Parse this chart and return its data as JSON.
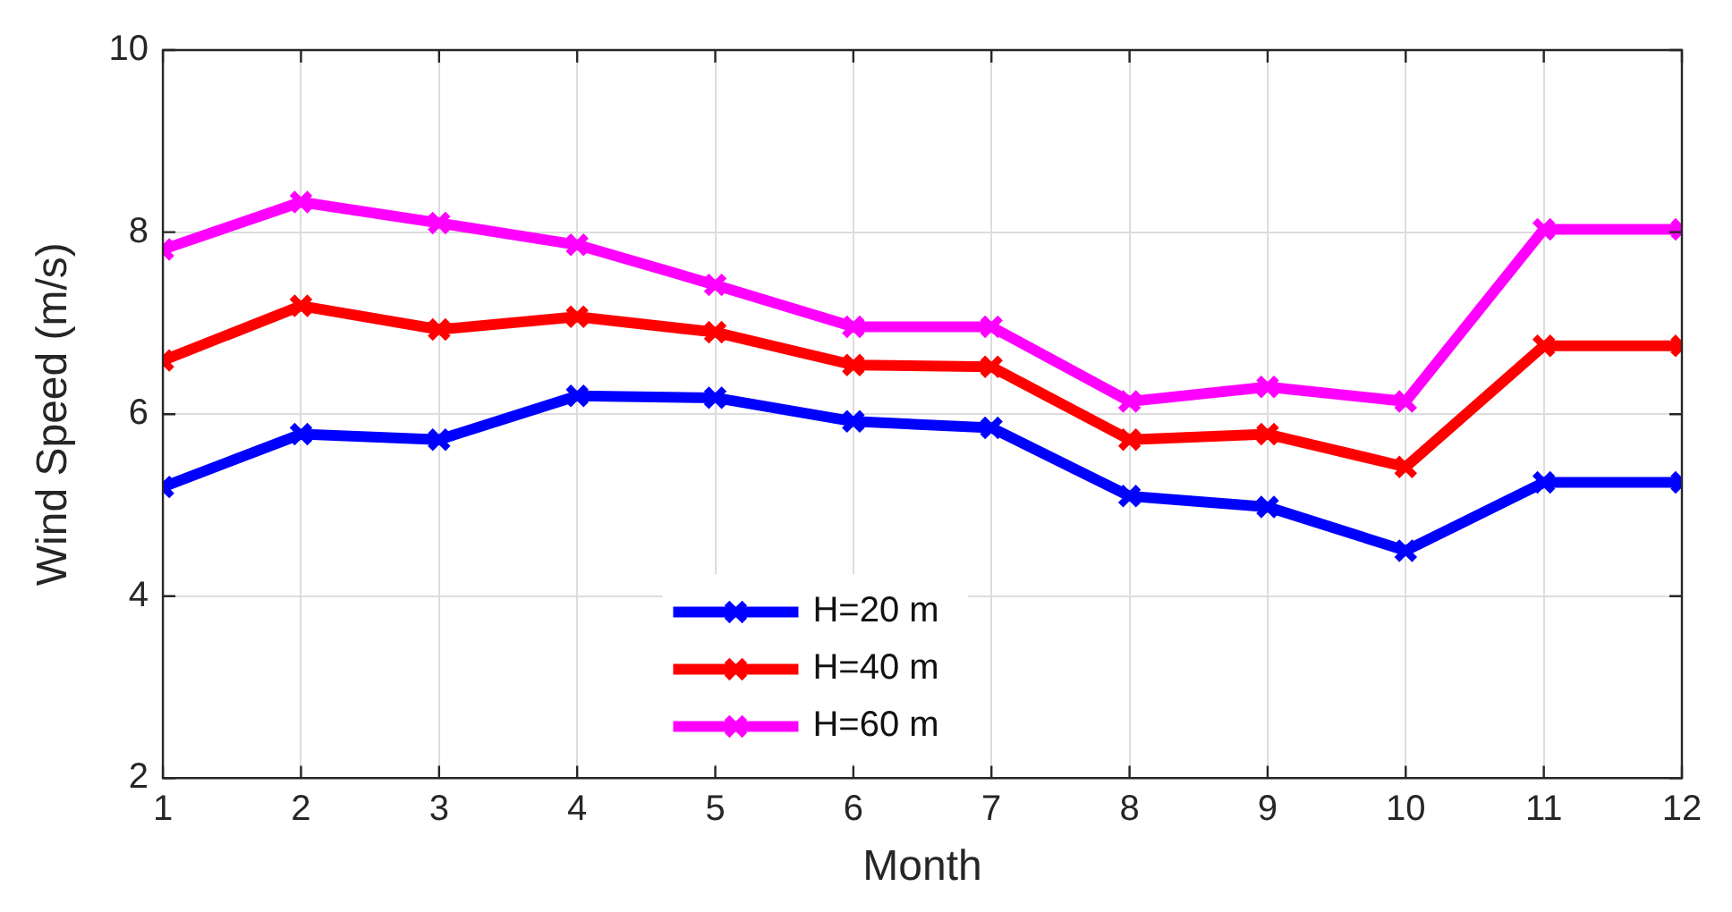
{
  "chart_data": {
    "type": "line",
    "xlabel": "Month",
    "ylabel": "Wind Speed (m/s)",
    "x": [
      1,
      2,
      3,
      4,
      5,
      6,
      7,
      8,
      9,
      10,
      11,
      12
    ],
    "xlim": [
      1,
      12
    ],
    "xticks": [
      1,
      2,
      3,
      4,
      5,
      6,
      7,
      8,
      9,
      10,
      11,
      12
    ],
    "ylim": [
      2,
      10
    ],
    "yticks": [
      2,
      4,
      6,
      8,
      10
    ],
    "grid": true,
    "legend": "bottom",
    "marker": "cross",
    "line_style": "solid",
    "series": [
      {
        "name": "H=20 m",
        "color": "#0000ff",
        "values": [
          5.2,
          5.78,
          5.72,
          6.2,
          6.18,
          5.92,
          5.85,
          5.1,
          4.98,
          4.5,
          5.25,
          5.25
        ]
      },
      {
        "name": "H=40 m",
        "color": "#ff0000",
        "values": [
          6.59,
          7.19,
          6.93,
          7.07,
          6.9,
          6.54,
          6.52,
          5.72,
          5.78,
          5.42,
          6.75,
          6.75
        ]
      },
      {
        "name": "H=60 m",
        "color": "#ff00ff",
        "values": [
          7.81,
          8.33,
          8.1,
          7.86,
          7.42,
          6.96,
          6.96,
          6.14,
          6.3,
          6.14,
          8.03,
          8.03
        ]
      }
    ]
  }
}
